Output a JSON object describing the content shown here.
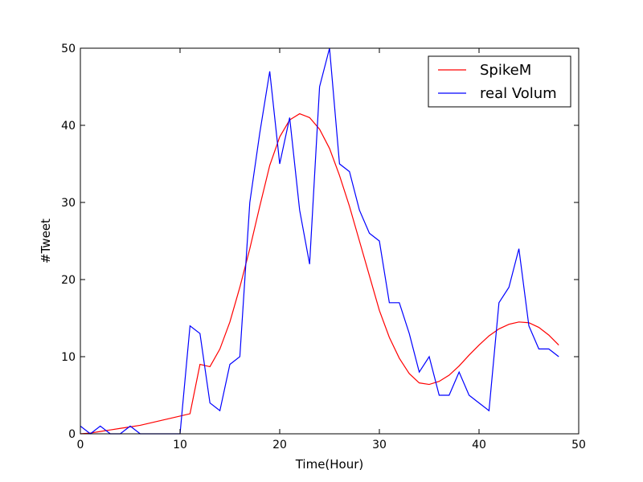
{
  "chart_data": {
    "type": "line",
    "xlabel": "Time(Hour)",
    "ylabel": "#Tweet",
    "xlim": [
      0,
      50
    ],
    "ylim": [
      0,
      50
    ],
    "xticks": [
      0,
      10,
      20,
      30,
      40,
      50
    ],
    "yticks": [
      0,
      10,
      20,
      30,
      40,
      50
    ],
    "grid": false,
    "legend_position": "top-right",
    "series": [
      {
        "name": "SpikeM",
        "color": "#ff0000",
        "x": [
          0,
          1,
          2,
          3,
          4,
          5,
          6,
          7,
          8,
          9,
          10,
          11,
          12,
          13,
          14,
          15,
          16,
          17,
          18,
          19,
          20,
          21,
          22,
          23,
          24,
          25,
          26,
          27,
          28,
          29,
          30,
          31,
          32,
          33,
          34,
          35,
          36,
          37,
          38,
          39,
          40,
          41,
          42,
          43,
          44,
          45,
          46,
          47,
          48
        ],
        "y": [
          0,
          0.1,
          0.3,
          0.5,
          0.7,
          0.9,
          1.1,
          1.4,
          1.7,
          2.0,
          2.3,
          2.6,
          9.0,
          8.7,
          11.0,
          14.5,
          19.0,
          24.0,
          29.5,
          34.8,
          38.5,
          40.7,
          41.5,
          41.0,
          39.5,
          37.0,
          33.5,
          29.5,
          25.0,
          20.5,
          16.0,
          12.5,
          9.8,
          7.8,
          6.6,
          6.4,
          6.8,
          7.6,
          8.8,
          10.2,
          11.5,
          12.7,
          13.6,
          14.2,
          14.5,
          14.4,
          13.8,
          12.8,
          11.5
        ]
      },
      {
        "name": "real Volum",
        "color": "#0000ff",
        "x": [
          0,
          1,
          2,
          3,
          4,
          5,
          6,
          7,
          8,
          9,
          10,
          11,
          12,
          13,
          14,
          15,
          16,
          17,
          18,
          19,
          20,
          21,
          22,
          23,
          24,
          25,
          26,
          27,
          28,
          29,
          30,
          31,
          32,
          33,
          34,
          35,
          36,
          37,
          38,
          39,
          40,
          41,
          42,
          43,
          44,
          45,
          46,
          47,
          48
        ],
        "y": [
          1,
          0,
          1,
          0,
          0,
          1,
          0,
          0,
          0,
          0,
          0,
          14,
          13,
          4,
          3,
          9,
          10,
          30,
          39,
          47,
          35,
          41,
          29,
          22,
          45,
          50,
          35,
          34,
          29,
          26,
          25,
          17,
          17,
          13,
          8,
          10,
          5,
          5,
          8,
          5,
          4,
          3,
          17,
          19,
          24,
          14,
          11,
          11,
          10
        ]
      }
    ]
  }
}
